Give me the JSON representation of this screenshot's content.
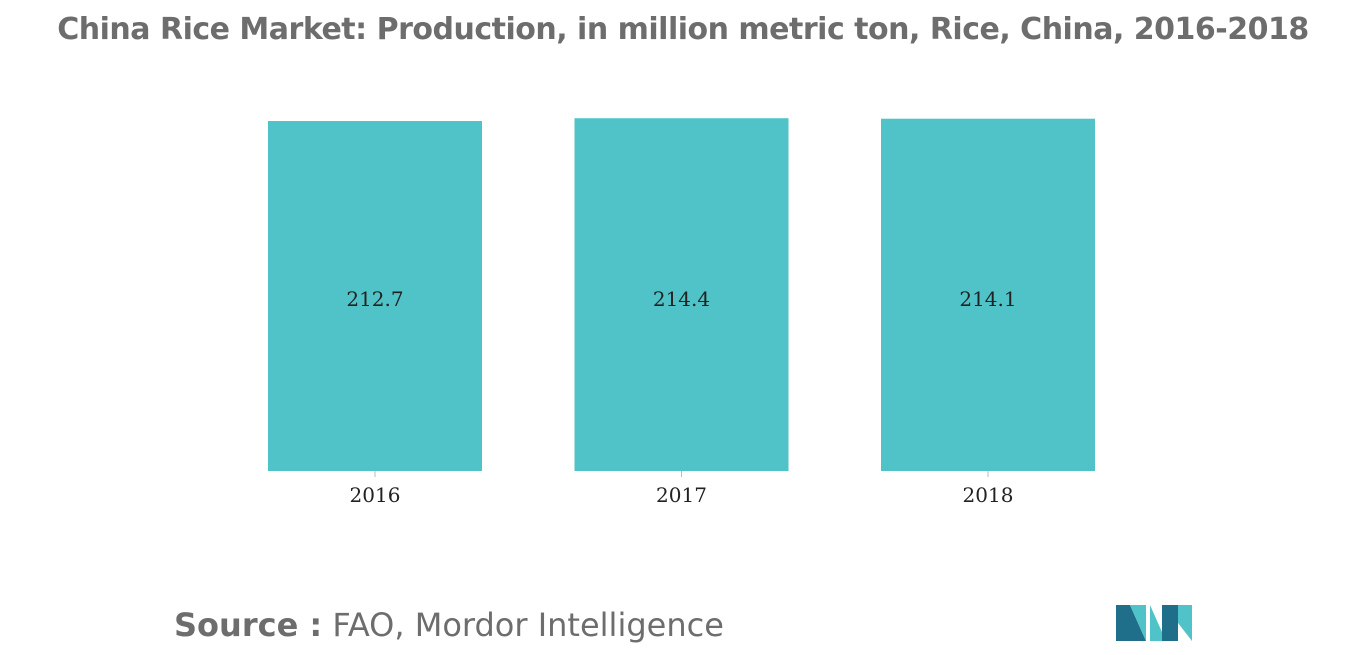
{
  "chart_data": {
    "type": "bar",
    "title": "China Rice Market: Production, in million metric ton, Rice, China, 2016-2018",
    "categories": [
      "2016",
      "2017",
      "2018"
    ],
    "values": [
      212.7,
      214.4,
      214.1
    ],
    "value_labels": [
      "212.7",
      "214.4",
      "214.1"
    ],
    "xlabel": "",
    "ylabel": "",
    "ylim": [
      0,
      220
    ],
    "grid": false,
    "legend": "none",
    "bar_color": "#50C3C9"
  },
  "source": {
    "label": "Source :",
    "text": "FAO, Mordor Intelligence"
  },
  "logo": {
    "icon": "mordor-intelligence-logo",
    "colors": [
      "#1f6f8b",
      "#50C3C9"
    ]
  }
}
